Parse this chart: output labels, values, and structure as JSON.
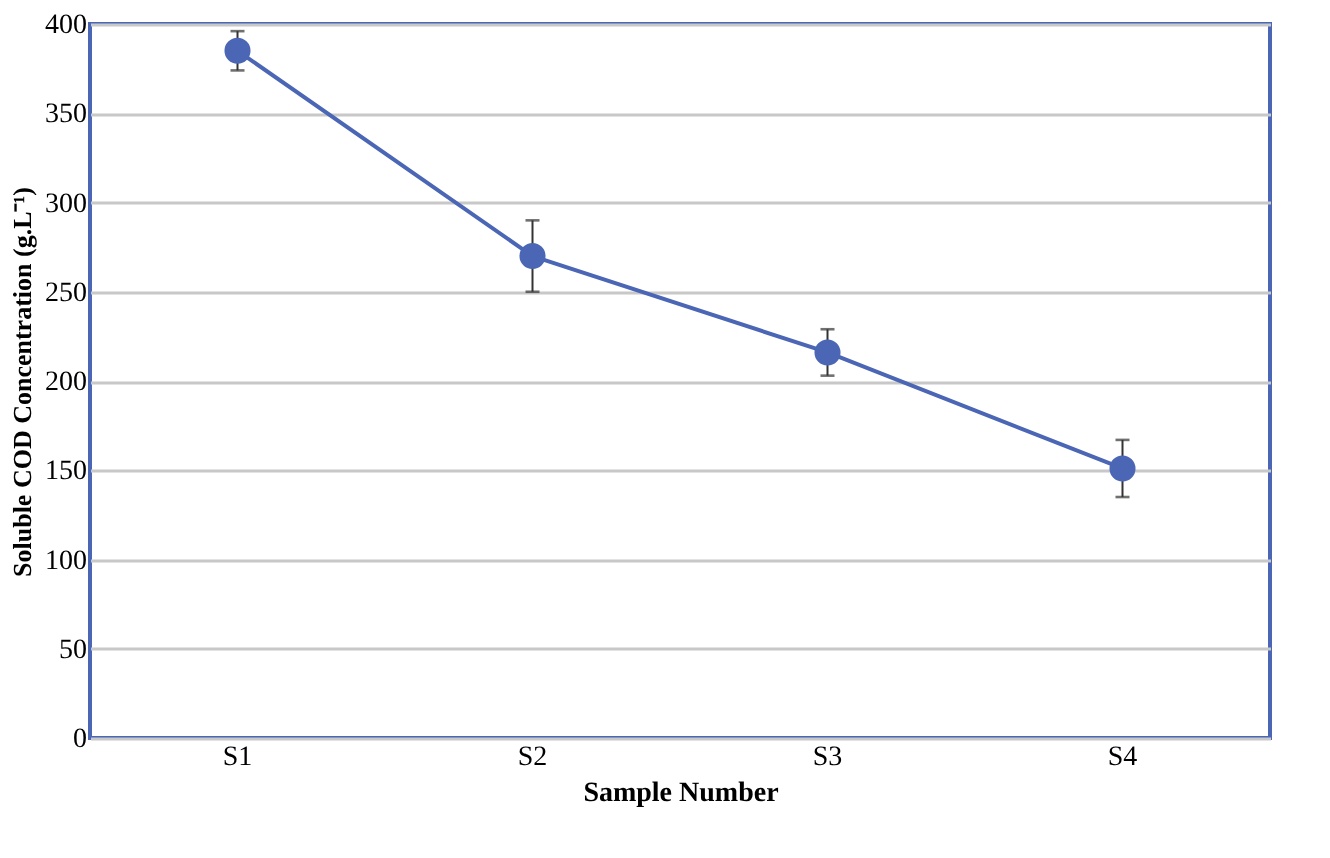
{
  "chart_data": {
    "type": "line",
    "xlabel": "Sample Number",
    "ylabel": "Soluble COD Concentration (g.L⁻¹)",
    "categories": [
      "S1",
      "S2",
      "S3",
      "S4"
    ],
    "series": [
      {
        "color": "#4a66b5",
        "values": [
          385,
          270,
          216,
          151
        ],
        "errors": [
          11,
          20,
          13,
          16
        ]
      }
    ],
    "ylim": [
      0,
      400
    ],
    "yticks": [
      0,
      50,
      100,
      150,
      200,
      250,
      300,
      350,
      400
    ],
    "grid": "y",
    "marker": "circle",
    "line_style": "solid"
  }
}
